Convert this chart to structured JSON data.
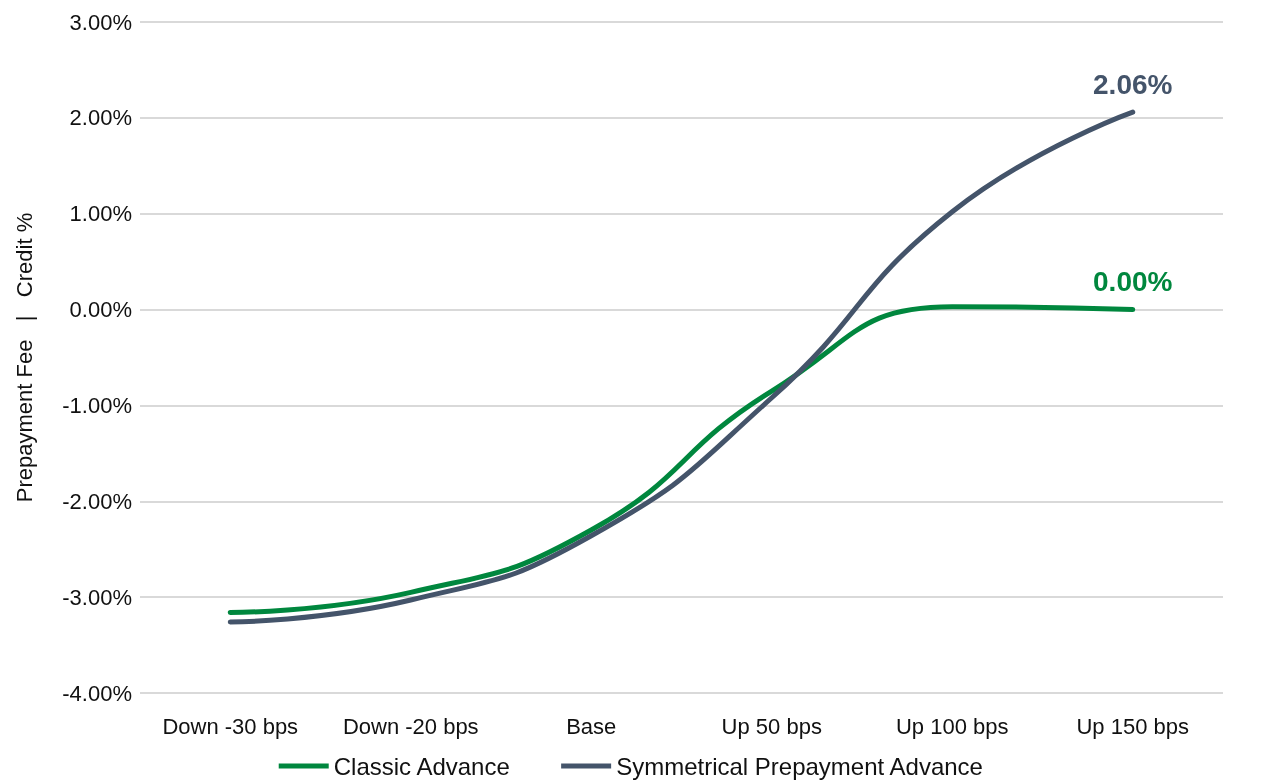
{
  "chart_data": {
    "type": "line",
    "ylabel": "Prepayment Fee   |   Credit %",
    "categories": [
      "Down -30 bps",
      "Down -20 bps",
      "Base",
      "Up 50 bps",
      "Up 100 bps",
      "Up 150 bps"
    ],
    "series": [
      {
        "name": "Classic Advance",
        "color": "#00873e",
        "values": [
          -3.16,
          -2.95,
          -2.3,
          -0.85,
          0.03,
          0.0
        ],
        "value_labels": [
          null,
          null,
          null,
          null,
          null,
          "0.00%"
        ]
      },
      {
        "name": "Symmetrical Prepayment Advance",
        "color": "#44546a",
        "values": [
          -3.26,
          -3.03,
          -2.36,
          -0.92,
          1.02,
          2.06
        ],
        "value_labels": [
          null,
          null,
          null,
          null,
          null,
          "2.06%"
        ]
      }
    ],
    "ylim": [
      -4,
      3
    ],
    "yticks": [
      {
        "value": -4,
        "label": "-4.00%"
      },
      {
        "value": -3,
        "label": "-3.00%"
      },
      {
        "value": -2,
        "label": "-2.00%"
      },
      {
        "value": -1,
        "label": "-1.00%"
      },
      {
        "value": 0,
        "label": "0.00%"
      },
      {
        "value": 1,
        "label": "1.00%"
      },
      {
        "value": 2,
        "label": "2.00%"
      },
      {
        "value": 3,
        "label": "3.00%"
      }
    ],
    "grid": "y",
    "legend": "bottom",
    "marker": "none",
    "line_style": "solid"
  }
}
